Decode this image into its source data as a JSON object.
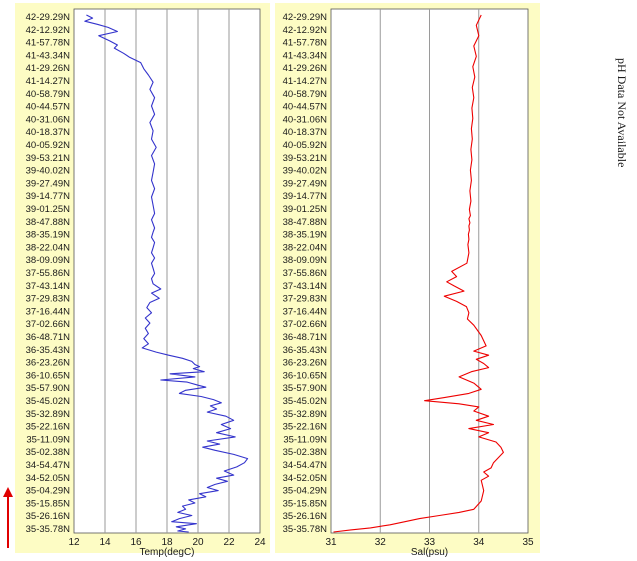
{
  "side_note": "pH Data Not Available",
  "chart_data": [
    {
      "type": "line",
      "xlabel": "Temp(degC)",
      "ylabel": "",
      "xlim": [
        12,
        24
      ],
      "xticks": [
        "12",
        "14",
        "16",
        "18",
        "20",
        "22",
        "24"
      ],
      "grid": "vertical",
      "color": "#3333cc",
      "y_tick_labels": [
        "42-29.29N",
        "42-12.92N",
        "41-57.78N",
        "41-43.34N",
        "41-29.26N",
        "41-14.27N",
        "40-58.79N",
        "40-44.57N",
        "40-31.06N",
        "40-18.37N",
        "40-05.92N",
        "39-53.21N",
        "39-40.02N",
        "39-27.49N",
        "39-14.77N",
        "39-01.25N",
        "38-47.88N",
        "38-35.19N",
        "38-22.04N",
        "38-09.09N",
        "37-55.86N",
        "37-43.14N",
        "37-29.83N",
        "37-16.44N",
        "37-02.66N",
        "36-48.71N",
        "36-35.43N",
        "36-23.26N",
        "36-10.65N",
        "35-57.90N",
        "35-45.02N",
        "35-32.89N",
        "35-22.16N",
        "35-11.09N",
        "35-02.38N",
        "34-54.47N",
        "34-52.05N",
        "35-04.29N",
        "35-15.85N",
        "35-26.16N",
        "35-35.78N"
      ],
      "x": [
        12.8,
        13.2,
        12.7,
        13.5,
        14.2,
        14.8,
        13.6,
        14.3,
        14.8,
        14.6,
        15.2,
        15.6,
        16.3,
        16.5,
        16.8,
        17.1,
        16.9,
        17.2,
        17.0,
        17.2,
        16.9,
        17.1,
        17.0,
        17.3,
        17.0,
        17.2,
        17.1,
        17.0,
        17.2,
        17.0,
        17.1,
        17.2,
        17.0,
        17.1,
        17.2,
        17.1,
        17.0,
        17.2,
        17.1,
        17.0,
        17.2,
        17.0,
        17.1,
        17.2,
        17.0,
        17.1,
        17.6,
        17.0,
        17.5,
        16.9,
        16.7,
        17.0,
        16.6,
        16.9,
        16.6,
        16.8,
        16.5,
        16.8,
        16.4,
        17.3,
        18.1,
        19.0,
        19.6,
        19.8,
        20.1,
        19.7,
        20.4,
        18.2,
        19.8,
        17.6,
        19.3,
        20.0,
        20.5,
        19.2,
        18.8,
        20.2,
        21.0,
        21.5,
        20.8,
        21.2,
        20.6,
        21.8,
        22.3,
        21.5,
        22.1,
        21.2,
        22.4,
        20.6,
        21.4,
        20.3,
        21.1,
        22.3,
        23.2,
        23.0,
        22.5,
        21.7,
        22.3,
        21.2,
        21.9,
        21.1,
        20.6,
        21.3,
        20.1,
        20.5,
        19.4,
        19.8,
        19.0,
        19.2,
        18.7,
        19.6,
        18.8,
        18.3,
        19.9,
        18.6,
        19.2,
        18.7,
        19.4
      ],
      "y": [
        0,
        0.3,
        0.6,
        0.9,
        1.2,
        1.6,
        2.0,
        2.5,
        2.9,
        3.2,
        3.7,
        4.1,
        4.6,
        5.2,
        5.8,
        6.5,
        7.2,
        8.0,
        8.8,
        9.6,
        10.4,
        11.2,
        12.0,
        12.8,
        13.6,
        14.4,
        15.2,
        16.0,
        16.8,
        17.6,
        18.4,
        19.2,
        19.8,
        20.2,
        20.6,
        21.0,
        21.5,
        22.0,
        22.5,
        23.0,
        23.5,
        24.0,
        24.5,
        25.0,
        25.5,
        26.0,
        26.5,
        26.9,
        27.4,
        27.8,
        28.3,
        28.8,
        29.3,
        29.8,
        30.3,
        30.8,
        31.3,
        31.8,
        32.2,
        32.6,
        32.9,
        33.2,
        33.5,
        33.8,
        34.0,
        34.2,
        34.5,
        34.7,
        35.0,
        35.3,
        35.5,
        35.8,
        36.0,
        36.3,
        36.6,
        36.9,
        37.2,
        37.5,
        37.8,
        38.1,
        38.4,
        38.8,
        39.2,
        39.6,
        40.0,
        40.4,
        40.8,
        41.2,
        41.5,
        41.8,
        42.1,
        42.5,
        42.9,
        43.3,
        43.7,
        44.1,
        44.5,
        44.8,
        45.1,
        45.4,
        45.7,
        46.0,
        46.3,
        46.6,
        46.9,
        47.2,
        47.5,
        47.8,
        48.1,
        48.4,
        48.7,
        49.0,
        49.2,
        49.5,
        49.7,
        49.9,
        50.0
      ]
    },
    {
      "type": "line",
      "xlabel": "Sal(psu)",
      "ylabel": "",
      "xlim": [
        31,
        35
      ],
      "xticks": [
        "31",
        "32",
        "33",
        "34",
        "35"
      ],
      "grid": "vertical",
      "color": "#ee0000",
      "y_tick_labels": [
        "42-29.29N",
        "42-12.92N",
        "41-57.78N",
        "41-43.34N",
        "41-29.26N",
        "41-14.27N",
        "40-58.79N",
        "40-44.57N",
        "40-31.06N",
        "40-18.37N",
        "40-05.92N",
        "39-53.21N",
        "39-40.02N",
        "39-27.49N",
        "39-14.77N",
        "39-01.25N",
        "38-47.88N",
        "38-35.19N",
        "38-22.04N",
        "38-09.09N",
        "37-55.86N",
        "37-43.14N",
        "37-29.83N",
        "37-16.44N",
        "37-02.66N",
        "36-48.71N",
        "36-35.43N",
        "36-23.26N",
        "36-10.65N",
        "35-57.90N",
        "35-45.02N",
        "35-32.89N",
        "35-22.16N",
        "35-11.09N",
        "35-02.38N",
        "34-54.47N",
        "34-52.05N",
        "35-04.29N",
        "35-15.85N",
        "35-26.16N",
        "35-35.78N"
      ],
      "x": [
        34.05,
        33.95,
        34.0,
        33.9,
        33.95,
        33.88,
        33.92,
        33.87,
        33.9,
        33.86,
        33.88,
        33.85,
        33.87,
        33.84,
        33.86,
        33.83,
        33.85,
        33.82,
        33.84,
        33.81,
        33.83,
        33.8,
        33.82,
        33.8,
        33.81,
        33.79,
        33.8,
        33.78,
        33.8,
        33.76,
        33.45,
        33.55,
        33.35,
        33.5,
        33.7,
        33.3,
        33.55,
        33.75,
        33.8,
        33.77,
        33.9,
        34.05,
        34.15,
        33.9,
        34.2,
        33.95,
        34.1,
        34.2,
        33.85,
        33.6,
        33.9,
        34.05,
        33.8,
        33.3,
        32.9,
        33.6,
        34.0,
        33.9,
        34.2,
        33.95,
        34.3,
        33.8,
        34.2,
        34.0,
        34.35,
        34.45,
        34.5,
        34.4,
        34.3,
        34.25,
        34.1,
        34.2,
        34.05,
        34.1,
        34.05,
        33.9,
        33.6,
        33.2,
        32.8,
        32.5,
        32.2,
        31.8,
        31.4,
        31.05
      ],
      "y": [
        0,
        1.0,
        2.0,
        3.0,
        4.0,
        5.0,
        6.0,
        7.0,
        8.0,
        9.0,
        10.0,
        11.0,
        12.0,
        13.0,
        14.0,
        15.0,
        16.0,
        17.0,
        18.0,
        18.8,
        19.4,
        19.7,
        20.1,
        20.4,
        20.8,
        21.2,
        21.7,
        22.2,
        23.0,
        24.0,
        24.8,
        25.3,
        25.8,
        26.2,
        26.7,
        27.2,
        27.7,
        28.2,
        28.8,
        29.4,
        30.0,
        31.0,
        32.0,
        32.5,
        32.9,
        33.3,
        33.7,
        34.1,
        34.5,
        35.0,
        35.6,
        36.2,
        36.6,
        37.0,
        37.3,
        37.6,
        37.9,
        38.3,
        38.8,
        39.2,
        39.6,
        40.0,
        40.4,
        40.8,
        41.3,
        41.8,
        42.3,
        42.8,
        43.3,
        43.8,
        44.2,
        44.6,
        45.0,
        46.0,
        47.0,
        47.8,
        48.1,
        48.4,
        48.7,
        49.0,
        49.3,
        49.6,
        49.8,
        50.0
      ]
    }
  ]
}
